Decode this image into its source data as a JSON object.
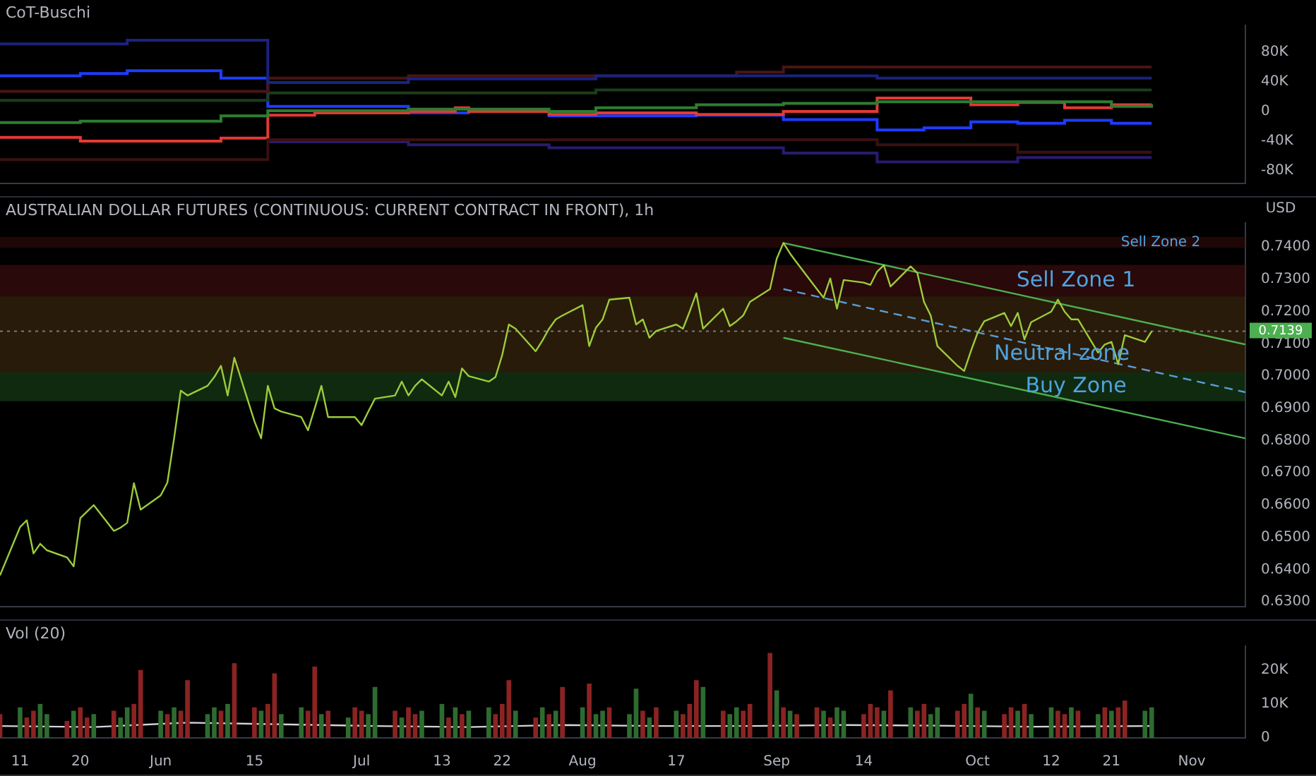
{
  "chart_data": [
    {
      "type": "step",
      "title": "CoT-Buschi",
      "xlim": [
        "--05-08",
        "--11-10"
      ],
      "ylim": [
        -97000,
        116000
      ],
      "yticks": [
        {
          "value": 80000,
          "label": "80K"
        },
        {
          "value": 40000,
          "label": "40K"
        },
        0,
        {
          "value": -40000,
          "label": "-40K"
        },
        {
          "value": -80000,
          "label": "-80K"
        }
      ],
      "tick_labels": "y",
      "marker": "none",
      "series": [
        {
          "color": "#1a237e",
          "x": [
            "--05-08",
            "--05-27",
            "--06-17",
            "--07-08",
            "--08-05",
            "--09-16",
            "--10-27"
          ],
          "values": [
            91000,
            96000,
            39000,
            44000,
            48000,
            45000,
            45000
          ]
        },
        {
          "color": "#4a1414",
          "x": [
            "--05-08",
            "--06-17",
            "--07-08",
            "--08-26",
            "--09-02",
            "--10-27"
          ],
          "values": [
            27000,
            45000,
            48000,
            53000,
            60000,
            60000
          ]
        },
        {
          "color": "#1b3d1b",
          "x": [
            "--05-08",
            "--06-17",
            "--08-05",
            "--10-27"
          ],
          "values": [
            15000,
            25000,
            29000,
            29000
          ]
        },
        {
          "color": "#3a1010",
          "x": [
            "--05-08",
            "--06-17",
            "--09-16",
            "--10-07",
            "--10-27"
          ],
          "values": [
            -65000,
            -38000,
            -45000,
            -55000,
            -55000
          ]
        },
        {
          "color": "#2a1a6e",
          "x": [
            "--06-17",
            "--07-08",
            "--07-29",
            "--09-02",
            "--09-16",
            "--10-07",
            "--10-27"
          ],
          "values": [
            -41000,
            -45000,
            -49000,
            -56000,
            -68000,
            -62000,
            -62000
          ]
        },
        {
          "color": "#2e7d32",
          "x": [
            "--05-08",
            "--05-20",
            "--06-10",
            "--06-17",
            "--07-08",
            "--07-29",
            "--08-05",
            "--08-20",
            "--09-02",
            "--09-16",
            "--10-21",
            "--10-27"
          ],
          "values": [
            -15000,
            -13000,
            -6000,
            1000,
            3000,
            0,
            5000,
            9000,
            11000,
            13000,
            7000,
            10000
          ]
        },
        {
          "color": "#e53935",
          "x": [
            "--05-08",
            "--05-20",
            "--06-10",
            "--06-17",
            "--06-24",
            "--07-08",
            "--07-15",
            "--07-17",
            "--07-29",
            "--08-05",
            "--08-20",
            "--09-02",
            "--09-16",
            "--09-30",
            "--10-07",
            "--10-14",
            "--10-21",
            "--10-27"
          ],
          "values": [
            -35000,
            -40000,
            -36000,
            -5000,
            -2000,
            0,
            5000,
            0,
            -4000,
            -2000,
            -4000,
            0,
            18000,
            9000,
            12000,
            5000,
            9000,
            9000
          ]
        },
        {
          "color": "#1e3cff",
          "x": [
            "--05-08",
            "--05-20",
            "--05-27",
            "--06-10",
            "--06-17",
            "--07-08",
            "--07-17",
            "--07-29",
            "--08-05",
            "--08-20",
            "--09-02",
            "--09-16",
            "--09-23",
            "--09-30",
            "--10-07",
            "--10-14",
            "--10-21",
            "--10-27"
          ],
          "values": [
            48000,
            51000,
            55000,
            45000,
            7000,
            -2000,
            0,
            -6000,
            -6000,
            -5000,
            -11000,
            -25000,
            -22000,
            -14000,
            -16000,
            -12000,
            -16000,
            -16000
          ]
        }
      ]
    },
    {
      "type": "line",
      "title": "AUSTRALIAN DOLLAR FUTURES (CONTINUOUS: CURRENT CONTRACT IN FRONT), 1h",
      "ylabel": "USD",
      "xlim": [
        "--05-08",
        "--11-10"
      ],
      "ylim": [
        0.6285,
        0.7475
      ],
      "yticks": [
        {
          "value": 0.63,
          "label": "0.6300"
        },
        {
          "value": 0.64,
          "label": "0.6400"
        },
        {
          "value": 0.65,
          "label": "0.6500"
        },
        {
          "value": 0.66,
          "label": "0.6600"
        },
        {
          "value": 0.67,
          "label": "0.6700"
        },
        {
          "value": 0.68,
          "label": "0.6800"
        },
        {
          "value": 0.69,
          "label": "0.6900"
        },
        {
          "value": 0.7,
          "label": "0.7000"
        },
        {
          "value": 0.71,
          "label": "0.7100"
        },
        {
          "value": 0.72,
          "label": "0.7200"
        },
        {
          "value": 0.73,
          "label": "0.7300"
        },
        {
          "value": 0.74,
          "label": "0.7400"
        }
      ],
      "tick_labels": "y",
      "marker": "none",
      "ref_lines": [
        {
          "axis": "y",
          "value": 0.7139,
          "label": "0.7139",
          "color": "#787b86",
          "line_style": "dotted"
        }
      ],
      "bands": [
        {
          "axis": "y",
          "from": 0.7398,
          "to": 0.7432,
          "label": "Sell Zone 2",
          "color": "#3a0d0d"
        },
        {
          "axis": "y",
          "from": 0.7247,
          "to": 0.7345,
          "label": "Sell Zone 1",
          "color": "#4a1010"
        },
        {
          "axis": "y",
          "from": 0.7011,
          "to": 0.7247,
          "label": "Neutral zone",
          "color": "#4a3210"
        },
        {
          "axis": "y",
          "from": 0.6922,
          "to": 0.7011,
          "label": "Buy Zone",
          "color": "#1e4d1e"
        }
      ],
      "series": [
        {
          "color": "#9ccc3c",
          "x": [
            "--05-08",
            "--05-11",
            "--05-12",
            "--05-13",
            "--05-14",
            "--05-15",
            "--05-18",
            "--05-19",
            "--05-20",
            "--05-21",
            "--05-22",
            "--05-25",
            "--05-26",
            "--05-27",
            "--05-28",
            "--05-29",
            "--06-01",
            "--06-02",
            "--06-03",
            "--06-04",
            "--06-05",
            "--06-08",
            "--06-09",
            "--06-10",
            "--06-11",
            "--06-12",
            "--06-15",
            "--06-16",
            "--06-17",
            "--06-18",
            "--06-19",
            "--06-22",
            "--06-23",
            "--06-24",
            "--06-25",
            "--06-26",
            "--06-29",
            "--06-30",
            "--07-01",
            "--07-02",
            "--07-03",
            "--07-06",
            "--07-07",
            "--07-08",
            "--07-09",
            "--07-10",
            "--07-13",
            "--07-14",
            "--07-15",
            "--07-16",
            "--07-17",
            "--07-20",
            "--07-21",
            "--07-22",
            "--07-23",
            "--07-24",
            "--07-27",
            "--07-28",
            "--07-29",
            "--07-30",
            "--07-31",
            "--08-03",
            "--08-04",
            "--08-05",
            "--08-06",
            "--08-07",
            "--08-10",
            "--08-11",
            "--08-12",
            "--08-13",
            "--08-14",
            "--08-17",
            "--08-18",
            "--08-19",
            "--08-20",
            "--08-21",
            "--08-24",
            "--08-25",
            "--08-26",
            "--08-27",
            "--08-28",
            "--08-31",
            "--09-01",
            "--09-02",
            "--09-03",
            "--09-04",
            "--09-07",
            "--09-08",
            "--09-09",
            "--09-10",
            "--09-11",
            "--09-14",
            "--09-15",
            "--09-16",
            "--09-17",
            "--09-18",
            "--09-21",
            "--09-22",
            "--09-23",
            "--09-24",
            "--09-25",
            "--09-28",
            "--09-29",
            "--09-30",
            "--10-01",
            "--10-02",
            "--10-05",
            "--10-06",
            "--10-07",
            "--10-08",
            "--10-09",
            "--10-12",
            "--10-13",
            "--10-14",
            "--10-15",
            "--10-16",
            "--10-19",
            "--10-20",
            "--10-21",
            "--10-22",
            "--10-23",
            "--10-26",
            "--10-27"
          ],
          "values": [
            0.6382,
            0.6532,
            0.6553,
            0.645,
            0.648,
            0.646,
            0.6438,
            0.641,
            0.656,
            0.658,
            0.66,
            0.652,
            0.653,
            0.6545,
            0.6668,
            0.6586,
            0.663,
            0.667,
            0.6807,
            0.6955,
            0.694,
            0.697,
            0.6997,
            0.7032,
            0.694,
            0.7057,
            0.686,
            0.6807,
            0.697,
            0.69,
            0.689,
            0.6873,
            0.6832,
            0.69,
            0.697,
            0.6873,
            0.6873,
            0.6873,
            0.6848,
            0.689,
            0.693,
            0.694,
            0.6983,
            0.694,
            0.697,
            0.699,
            0.694,
            0.6983,
            0.6935,
            0.7024,
            0.7,
            0.6983,
            0.6997,
            0.7065,
            0.716,
            0.7147,
            0.7077,
            0.711,
            0.7147,
            0.7176,
            0.7188,
            0.722,
            0.7093,
            0.715,
            0.7176,
            0.7237,
            0.7243,
            0.716,
            0.7176,
            0.7119,
            0.714,
            0.716,
            0.7147,
            0.72,
            0.7257,
            0.7147,
            0.7209,
            0.7155,
            0.717,
            0.7188,
            0.723,
            0.727,
            0.7364,
            0.7413,
            0.738,
            0.7352,
            0.727,
            0.7243,
            0.7303,
            0.7209,
            0.7298,
            0.729,
            0.7283,
            0.7324,
            0.7344,
            0.7278,
            0.734,
            0.732,
            0.723,
            0.7188,
            0.7093,
            0.7032,
            0.7016,
            0.7077,
            0.7134,
            0.717,
            0.7196,
            0.7155,
            0.7196,
            0.7114,
            0.7167,
            0.72,
            0.7237,
            0.72,
            0.7176,
            0.7176,
            0.7073,
            0.7098,
            0.7106,
            0.7037,
            0.7127,
            0.7106,
            0.7139
          ]
        },
        {
          "type": "line",
          "color": "#4caf50",
          "x": [
            "--09-02",
            "--11-10"
          ],
          "values": [
            0.7413,
            0.7098
          ]
        },
        {
          "type": "line",
          "color": "#4caf50",
          "x": [
            "--09-02",
            "--11-10"
          ],
          "values": [
            0.7119,
            0.6807
          ]
        },
        {
          "type": "line",
          "color": "#5b9bd5",
          "line_style": "dashed",
          "x": [
            "--09-02",
            "--11-10"
          ],
          "values": [
            0.727,
            0.695
          ]
        }
      ]
    },
    {
      "type": "bar",
      "title": "Vol (20)",
      "xlim": [
        "--05-08",
        "--11-10"
      ],
      "ylim": [
        0,
        27000
      ],
      "yticks": [
        0,
        {
          "value": 10000,
          "label": "10K"
        },
        {
          "value": 20000,
          "label": "20K"
        }
      ],
      "xticks": [
        {
          "value": "--05-11",
          "label": "11"
        },
        {
          "value": "--05-20",
          "label": "20"
        },
        {
          "value": "--06-01",
          "label": "Jun"
        },
        {
          "value": "--06-15",
          "label": "15"
        },
        {
          "value": "--07-01",
          "label": "Jul"
        },
        {
          "value": "--07-13",
          "label": "13"
        },
        {
          "value": "--07-22",
          "label": "22"
        },
        {
          "value": "--08-03",
          "label": "Aug"
        },
        {
          "value": "--08-17",
          "label": "17"
        },
        {
          "value": "--09-01",
          "label": "Sep"
        },
        {
          "value": "--09-14",
          "label": "14"
        },
        {
          "value": "--10-01",
          "label": "Oct"
        },
        {
          "value": "--10-12",
          "label": "12"
        },
        {
          "value": "--10-21",
          "label": "21"
        },
        {
          "value": "--11-02",
          "label": "Nov"
        }
      ],
      "x": [
        "--05-08",
        "--05-11",
        "--05-12",
        "--05-13",
        "--05-14",
        "--05-15",
        "--05-18",
        "--05-19",
        "--05-20",
        "--05-21",
        "--05-22",
        "--05-25",
        "--05-26",
        "--05-27",
        "--05-28",
        "--05-29",
        "--06-01",
        "--06-02",
        "--06-03",
        "--06-04",
        "--06-05",
        "--06-08",
        "--06-09",
        "--06-10",
        "--06-11",
        "--06-12",
        "--06-15",
        "--06-16",
        "--06-17",
        "--06-18",
        "--06-19",
        "--06-22",
        "--06-23",
        "--06-24",
        "--06-25",
        "--06-26",
        "--06-29",
        "--06-30",
        "--07-01",
        "--07-02",
        "--07-03",
        "--07-06",
        "--07-07",
        "--07-08",
        "--07-09",
        "--07-10",
        "--07-13",
        "--07-14",
        "--07-15",
        "--07-16",
        "--07-17",
        "--07-20",
        "--07-21",
        "--07-22",
        "--07-23",
        "--07-24",
        "--07-27",
        "--07-28",
        "--07-29",
        "--07-30",
        "--07-31",
        "--08-03",
        "--08-04",
        "--08-05",
        "--08-06",
        "--08-07",
        "--08-10",
        "--08-11",
        "--08-12",
        "--08-13",
        "--08-14",
        "--08-17",
        "--08-18",
        "--08-19",
        "--08-20",
        "--08-21",
        "--08-24",
        "--08-25",
        "--08-26",
        "--08-27",
        "--08-28",
        "--08-31",
        "--09-01",
        "--09-02",
        "--09-03",
        "--09-04",
        "--09-07",
        "--09-08",
        "--09-09",
        "--09-10",
        "--09-11",
        "--09-14",
        "--09-15",
        "--09-16",
        "--09-17",
        "--09-18",
        "--09-21",
        "--09-22",
        "--09-23",
        "--09-24",
        "--09-25",
        "--09-28",
        "--09-29",
        "--09-30",
        "--10-01",
        "--10-02",
        "--10-05",
        "--10-06",
        "--10-07",
        "--10-08",
        "--10-09",
        "--10-12",
        "--10-13",
        "--10-14",
        "--10-15",
        "--10-16",
        "--10-19",
        "--10-20",
        "--10-21",
        "--10-22",
        "--10-23",
        "--10-26",
        "--10-27"
      ],
      "values": [
        7000,
        9000,
        6000,
        8000,
        10000,
        7000,
        5000,
        8000,
        9000,
        6000,
        7000,
        8000,
        6000,
        9000,
        10000,
        20000,
        8000,
        7000,
        9000,
        8000,
        17000,
        7000,
        9000,
        8000,
        10000,
        22000,
        9000,
        8000,
        10000,
        19000,
        7000,
        9000,
        8000,
        21000,
        7000,
        8000,
        6000,
        9000,
        8000,
        7000,
        15000,
        8000,
        6000,
        9000,
        7000,
        8000,
        10000,
        6000,
        9000,
        7000,
        8000,
        9000,
        7000,
        10000,
        17000,
        8000,
        6000,
        9000,
        7000,
        8000,
        15000,
        9000,
        16000,
        7000,
        8000,
        9000,
        7000,
        14500,
        8000,
        6000,
        9000,
        8000,
        7000,
        10000,
        17000,
        15000,
        8000,
        7000,
        9000,
        8000,
        10000,
        25000,
        14000,
        9000,
        8000,
        7000,
        9000,
        8000,
        6000,
        9000,
        8000,
        7000,
        10000,
        9000,
        8000,
        14000,
        9000,
        8000,
        10000,
        7000,
        9000,
        8000,
        10000,
        13000,
        9000,
        8000,
        7000,
        9000,
        8000,
        10000,
        7000,
        9000,
        8000,
        7000,
        9000,
        8000,
        7000,
        9000,
        8000,
        9000,
        11000,
        8000,
        9000
      ],
      "colors": [
        "#8b2323",
        "#2e6b30",
        "#8b2323",
        "#8b2323",
        "#2e6b30",
        "#2e6b30",
        "#8b2323",
        "#2e6b30",
        "#8b2323",
        "#8b2323",
        "#2e6b30",
        "#8b2323",
        "#2e6b30",
        "#2e6b30",
        "#8b2323",
        "#8b2323",
        "#2e6b30",
        "#8b2323",
        "#2e6b30",
        "#8b2323",
        "#8b2323",
        "#2e6b30",
        "#2e6b30",
        "#8b2323",
        "#2e6b30",
        "#8b2323",
        "#8b2323",
        "#2e6b30",
        "#8b2323",
        "#8b2323",
        "#2e6b30",
        "#2e6b30",
        "#8b2323",
        "#8b2323",
        "#2e6b30",
        "#8b2323",
        "#2e6b30",
        "#8b2323",
        "#8b2323",
        "#2e6b30",
        "#2e6b30",
        "#8b2323",
        "#2e6b30",
        "#8b2323",
        "#8b2323",
        "#2e6b30",
        "#2e6b30",
        "#8b2323",
        "#2e6b30",
        "#8b2323",
        "#2e6b30",
        "#2e6b30",
        "#8b2323",
        "#8b2323",
        "#8b2323",
        "#2e6b30",
        "#8b2323",
        "#2e6b30",
        "#8b2323",
        "#2e6b30",
        "#8b2323",
        "#2e6b30",
        "#8b2323",
        "#2e6b30",
        "#2e6b30",
        "#8b2323",
        "#2e6b30",
        "#2e6b30",
        "#8b2323",
        "#2e6b30",
        "#8b2323",
        "#2e6b30",
        "#8b2323",
        "#8b2323",
        "#8b2323",
        "#2e6b30",
        "#8b2323",
        "#2e6b30",
        "#2e6b30",
        "#8b2323",
        "#8b2323",
        "#8b2323",
        "#2e6b30",
        "#8b2323",
        "#2e6b30",
        "#8b2323",
        "#8b2323",
        "#2e6b30",
        "#8b2323",
        "#2e6b30",
        "#2e6b30",
        "#8b2323",
        "#8b2323",
        "#8b2323",
        "#2e6b30",
        "#8b2323",
        "#2e6b30",
        "#8b2323",
        "#8b2323",
        "#2e6b30",
        "#2e6b30",
        "#8b2323",
        "#8b2323",
        "#2e6b30",
        "#8b2323",
        "#2e6b30",
        "#8b2323",
        "#8b2323",
        "#2e6b30",
        "#8b2323",
        "#2e6b30",
        "#2e6b30",
        "#8b2323",
        "#8b2323",
        "#2e6b30",
        "#8b2323",
        "#2e6b30",
        "#8b2323",
        "#2e6b30",
        "#8b2323",
        "#8b2323",
        "#2e6b30",
        "#2e6b30"
      ],
      "series": [
        {
          "type": "line",
          "color": "#d1d4dc",
          "x": [
            "--05-08",
            "--05-22",
            "--06-05",
            "--06-19",
            "--07-03",
            "--07-17",
            "--07-31",
            "--08-14",
            "--08-28",
            "--09-11",
            "--09-25",
            "--10-09",
            "--10-27"
          ],
          "values": [
            3500,
            3200,
            4500,
            4000,
            3500,
            3200,
            3800,
            3500,
            3500,
            3800,
            3600,
            3300,
            3500
          ]
        }
      ]
    }
  ]
}
